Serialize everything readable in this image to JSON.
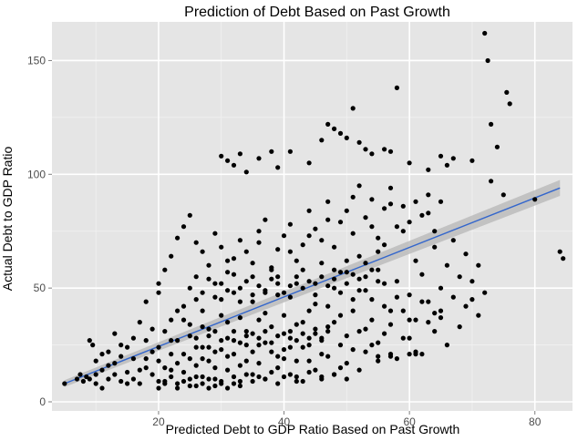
{
  "chart_data": {
    "type": "scatter",
    "title": "Prediction of Debt Based on Past Growth",
    "xlabel": "Predicted Debt to GDP Ratio Based on Past Growth",
    "ylabel": "Actual Debt to GDP Ratio",
    "xlim": [
      3,
      86
    ],
    "ylim": [
      -4,
      167
    ],
    "x_ticks": [
      20,
      40,
      60,
      80
    ],
    "y_ticks": [
      0,
      50,
      100,
      150
    ],
    "x_tick_labels": [
      "20",
      "40",
      "60",
      "80"
    ],
    "y_tick_labels": [
      "0",
      "50",
      "100",
      "150"
    ],
    "grid": true,
    "background_color": "#e5e5e5",
    "point_color": "#000000",
    "trend": {
      "type": "linear",
      "x": [
        5,
        84
      ],
      "y": [
        8,
        94
      ],
      "ci_start": 1.5,
      "ci_end": 3.5,
      "color": "#3366cc",
      "band_color": "#bcbcbc"
    },
    "points": [
      [
        5,
        8
      ],
      [
        7,
        10
      ],
      [
        7.5,
        12
      ],
      [
        8,
        9
      ],
      [
        8.5,
        11
      ],
      [
        9,
        10
      ],
      [
        9,
        27
      ],
      [
        9.5,
        25
      ],
      [
        10,
        12
      ],
      [
        10,
        8
      ],
      [
        11,
        6
      ],
      [
        11,
        14
      ],
      [
        12,
        22
      ],
      [
        12,
        10
      ],
      [
        13,
        30
      ],
      [
        13,
        17
      ],
      [
        14,
        9
      ],
      [
        14,
        25
      ],
      [
        15,
        13
      ],
      [
        16,
        10
      ],
      [
        16,
        19
      ],
      [
        17,
        8
      ],
      [
        17,
        35
      ],
      [
        18,
        15
      ],
      [
        18,
        44
      ],
      [
        19,
        12
      ],
      [
        19,
        22
      ],
      [
        20,
        48
      ],
      [
        20,
        6
      ],
      [
        20,
        18
      ],
      [
        21,
        31
      ],
      [
        21,
        9
      ],
      [
        22,
        27
      ],
      [
        22,
        14
      ],
      [
        23,
        40
      ],
      [
        23,
        8
      ],
      [
        24,
        21
      ],
      [
        24,
        36
      ],
      [
        25,
        7
      ],
      [
        25,
        29
      ],
      [
        26,
        11
      ],
      [
        26,
        45
      ],
      [
        27,
        19
      ],
      [
        27,
        33
      ],
      [
        28,
        6
      ],
      [
        28,
        24
      ],
      [
        29,
        52
      ],
      [
        29,
        15
      ],
      [
        30,
        8
      ],
      [
        30,
        38
      ],
      [
        31,
        20
      ],
      [
        31,
        62
      ],
      [
        32,
        11
      ],
      [
        32,
        27
      ],
      [
        33,
        44
      ],
      [
        33,
        9
      ],
      [
        34,
        31
      ],
      [
        34,
        18
      ],
      [
        35,
        55
      ],
      [
        35,
        12
      ],
      [
        36,
        25
      ],
      [
        36,
        70
      ],
      [
        37,
        10
      ],
      [
        37,
        39
      ],
      [
        38,
        22
      ],
      [
        38,
        58
      ],
      [
        39,
        15
      ],
      [
        39,
        47
      ],
      [
        40,
        30
      ],
      [
        40,
        11
      ],
      [
        41,
        66
      ],
      [
        41,
        24
      ],
      [
        42,
        18
      ],
      [
        42,
        52
      ],
      [
        43,
        35
      ],
      [
        43,
        9
      ],
      [
        44,
        73
      ],
      [
        44,
        28
      ],
      [
        45,
        43
      ],
      [
        45,
        14
      ],
      [
        46,
        61
      ],
      [
        46,
        21
      ],
      [
        47,
        33
      ],
      [
        47,
        80
      ],
      [
        48,
        12
      ],
      [
        48,
        50
      ],
      [
        49,
        38
      ],
      [
        49,
        25
      ],
      [
        50,
        57
      ],
      [
        50,
        17
      ],
      [
        51,
        45
      ],
      [
        51,
        90
      ],
      [
        52,
        31
      ],
      [
        52,
        64
      ],
      [
        53,
        22
      ],
      [
        53,
        49
      ],
      [
        54,
        77
      ],
      [
        54,
        36
      ],
      [
        55,
        58
      ],
      [
        55,
        26
      ],
      [
        56,
        42
      ],
      [
        56,
        69
      ],
      [
        57,
        34
      ],
      [
        57,
        87
      ],
      [
        58,
        19
      ],
      [
        58,
        53
      ],
      [
        59,
        40
      ],
      [
        59,
        75
      ],
      [
        60,
        47
      ],
      [
        60,
        28
      ],
      [
        61,
        62
      ],
      [
        61,
        36
      ],
      [
        62,
        21
      ],
      [
        62,
        56
      ],
      [
        63,
        44
      ],
      [
        63,
        83
      ],
      [
        64,
        31
      ],
      [
        64,
        68
      ],
      [
        65,
        50
      ],
      [
        65,
        37
      ],
      [
        66,
        60
      ],
      [
        66,
        25
      ],
      [
        67,
        46
      ],
      [
        67,
        71
      ],
      [
        68,
        55
      ],
      [
        68,
        33
      ],
      [
        69,
        42
      ],
      [
        69,
        65
      ],
      [
        70,
        53
      ],
      [
        70,
        45
      ],
      [
        71,
        60
      ],
      [
        71,
        38
      ],
      [
        72,
        48
      ],
      [
        20,
        52
      ],
      [
        21,
        58
      ],
      [
        22,
        64
      ],
      [
        23,
        72
      ],
      [
        24,
        77
      ],
      [
        25,
        82
      ],
      [
        26,
        70
      ],
      [
        27,
        66
      ],
      [
        28,
        60
      ],
      [
        29,
        74
      ],
      [
        30,
        68
      ],
      [
        31,
        57
      ],
      [
        32,
        63
      ],
      [
        33,
        71
      ],
      [
        34,
        66
      ],
      [
        35,
        61
      ],
      [
        36,
        75
      ],
      [
        37,
        80
      ],
      [
        38,
        59
      ],
      [
        39,
        67
      ],
      [
        40,
        73
      ],
      [
        41,
        78
      ],
      [
        42,
        62
      ],
      [
        43,
        69
      ],
      [
        44,
        84
      ],
      [
        45,
        76
      ],
      [
        46,
        71
      ],
      [
        47,
        88
      ],
      [
        48,
        68
      ],
      [
        49,
        79
      ],
      [
        50,
        84
      ],
      [
        51,
        74
      ],
      [
        52,
        95
      ],
      [
        53,
        81
      ],
      [
        54,
        89
      ],
      [
        55,
        72
      ],
      [
        56,
        85
      ],
      [
        57,
        94
      ],
      [
        58,
        77
      ],
      [
        59,
        86
      ],
      [
        60,
        79
      ],
      [
        61,
        88
      ],
      [
        62,
        82
      ],
      [
        63,
        91
      ],
      [
        64,
        75
      ],
      [
        65,
        88
      ],
      [
        30,
        108
      ],
      [
        31,
        106
      ],
      [
        32,
        104
      ],
      [
        33,
        109
      ],
      [
        34,
        101
      ],
      [
        36,
        107
      ],
      [
        38,
        110
      ],
      [
        39,
        103
      ],
      [
        41,
        110
      ],
      [
        44,
        105
      ],
      [
        46,
        115
      ],
      [
        47,
        122
      ],
      [
        48,
        120
      ],
      [
        49,
        118
      ],
      [
        50,
        116
      ],
      [
        51,
        129
      ],
      [
        52,
        114
      ],
      [
        53,
        111
      ],
      [
        54,
        109
      ],
      [
        56,
        111
      ],
      [
        57,
        110
      ],
      [
        58,
        138
      ],
      [
        60,
        105
      ],
      [
        63,
        102
      ],
      [
        65,
        108
      ],
      [
        66,
        104
      ],
      [
        67,
        107
      ],
      [
        70,
        106
      ],
      [
        72,
        162
      ],
      [
        72.5,
        150
      ],
      [
        73,
        122
      ],
      [
        73,
        97
      ],
      [
        74,
        112
      ],
      [
        75,
        91
      ],
      [
        75.5,
        136
      ],
      [
        76,
        131
      ],
      [
        80,
        89
      ],
      [
        84,
        66
      ],
      [
        84.5,
        63
      ],
      [
        10,
        18
      ],
      [
        11,
        21
      ],
      [
        12,
        16
      ],
      [
        13,
        12
      ],
      [
        14,
        20
      ],
      [
        15,
        24
      ],
      [
        15,
        8
      ],
      [
        16,
        28
      ],
      [
        17,
        14
      ],
      [
        18,
        19
      ],
      [
        18,
        27
      ],
      [
        19,
        32
      ],
      [
        20,
        24
      ],
      [
        21,
        15
      ],
      [
        22,
        21
      ],
      [
        22,
        36
      ],
      [
        23,
        17
      ],
      [
        23,
        27
      ],
      [
        24,
        13
      ],
      [
        24,
        42
      ],
      [
        25,
        19
      ],
      [
        25,
        34
      ],
      [
        26,
        16
      ],
      [
        26,
        24
      ],
      [
        27,
        11
      ],
      [
        27,
        40
      ],
      [
        28,
        18
      ],
      [
        28,
        32
      ],
      [
        29,
        22
      ],
      [
        29,
        10
      ],
      [
        30,
        27
      ],
      [
        30,
        45
      ],
      [
        31,
        14
      ],
      [
        31,
        35
      ],
      [
        32,
        21
      ],
      [
        32,
        48
      ],
      [
        33,
        16
      ],
      [
        33,
        37
      ],
      [
        34,
        25
      ],
      [
        34,
        12
      ],
      [
        35,
        30
      ],
      [
        35,
        44
      ],
      [
        36,
        17
      ],
      [
        36,
        36
      ],
      [
        37,
        26
      ],
      [
        37,
        48
      ],
      [
        38,
        13
      ],
      [
        38,
        33
      ],
      [
        39,
        20
      ],
      [
        39,
        55
      ],
      [
        40,
        38
      ],
      [
        40,
        19
      ],
      [
        41,
        28
      ],
      [
        41,
        46
      ],
      [
        42,
        34
      ],
      [
        42,
        11
      ],
      [
        43,
        24
      ],
      [
        43,
        58
      ],
      [
        44,
        18
      ],
      [
        44,
        40
      ],
      [
        45,
        30
      ],
      [
        45,
        52
      ],
      [
        46,
        27
      ],
      [
        46,
        11
      ],
      [
        47,
        42
      ],
      [
        47,
        20
      ],
      [
        48,
        35
      ],
      [
        48,
        58
      ],
      [
        49,
        15
      ],
      [
        49,
        48
      ],
      [
        50,
        29
      ],
      [
        50,
        62
      ],
      [
        51,
        23
      ],
      [
        51,
        40
      ],
      [
        52,
        14
      ],
      [
        52,
        54
      ],
      [
        53,
        32
      ],
      [
        53,
        61
      ],
      [
        54,
        25
      ],
      [
        54,
        45
      ],
      [
        55,
        20
      ],
      [
        55,
        66
      ],
      [
        56,
        30
      ],
      [
        56,
        52
      ],
      [
        57,
        21
      ],
      [
        57,
        40
      ],
      [
        58,
        46
      ],
      [
        59,
        28
      ],
      [
        60,
        36
      ],
      [
        61,
        21
      ],
      [
        62,
        44
      ],
      [
        63,
        35
      ],
      [
        64,
        39
      ],
      [
        65,
        40
      ],
      [
        25,
        50
      ],
      [
        26,
        55
      ],
      [
        27,
        48
      ],
      [
        28,
        54
      ],
      [
        29,
        46
      ],
      [
        30,
        52
      ],
      [
        31,
        49
      ],
      [
        32,
        56
      ],
      [
        33,
        50
      ],
      [
        34,
        53
      ],
      [
        35,
        47
      ],
      [
        36,
        51
      ],
      [
        37,
        49
      ],
      [
        38,
        54
      ],
      [
        39,
        52
      ],
      [
        40,
        48
      ],
      [
        41,
        51
      ],
      [
        42,
        55
      ],
      [
        43,
        50
      ],
      [
        44,
        53
      ],
      [
        45,
        47
      ],
      [
        46,
        55
      ],
      [
        47,
        51
      ],
      [
        48,
        54
      ],
      [
        49,
        57
      ],
      [
        50,
        52
      ],
      [
        51,
        56
      ],
      [
        52,
        49
      ],
      [
        53,
        55
      ],
      [
        54,
        58
      ],
      [
        55,
        53
      ],
      [
        26,
        28
      ],
      [
        27,
        24
      ],
      [
        28,
        29
      ],
      [
        29,
        31
      ],
      [
        30,
        23
      ],
      [
        31,
        28
      ],
      [
        32,
        31
      ],
      [
        33,
        26
      ],
      [
        34,
        29
      ],
      [
        35,
        22
      ],
      [
        36,
        28
      ],
      [
        37,
        31
      ],
      [
        38,
        26
      ],
      [
        39,
        29
      ],
      [
        40,
        23
      ],
      [
        41,
        31
      ],
      [
        42,
        27
      ],
      [
        43,
        30
      ],
      [
        44,
        25
      ],
      [
        45,
        32
      ],
      [
        46,
        28
      ],
      [
        47,
        31
      ],
      [
        20,
        9
      ],
      [
        21,
        8
      ],
      [
        22,
        11
      ],
      [
        23,
        6
      ],
      [
        24,
        9
      ],
      [
        25,
        10
      ],
      [
        26,
        7
      ],
      [
        27,
        8
      ],
      [
        28,
        10
      ],
      [
        29,
        7
      ],
      [
        30,
        9
      ],
      [
        31,
        6
      ],
      [
        32,
        8
      ],
      [
        33,
        7
      ],
      [
        35,
        9
      ],
      [
        36,
        11
      ],
      [
        37,
        10
      ],
      [
        39,
        8
      ],
      [
        41,
        12
      ],
      [
        42,
        9
      ],
      [
        44,
        13
      ],
      [
        46,
        10
      ],
      [
        48,
        12
      ],
      [
        50,
        10
      ],
      [
        55,
        18
      ],
      [
        57,
        20
      ],
      [
        60,
        21
      ],
      [
        61,
        22
      ]
    ]
  }
}
